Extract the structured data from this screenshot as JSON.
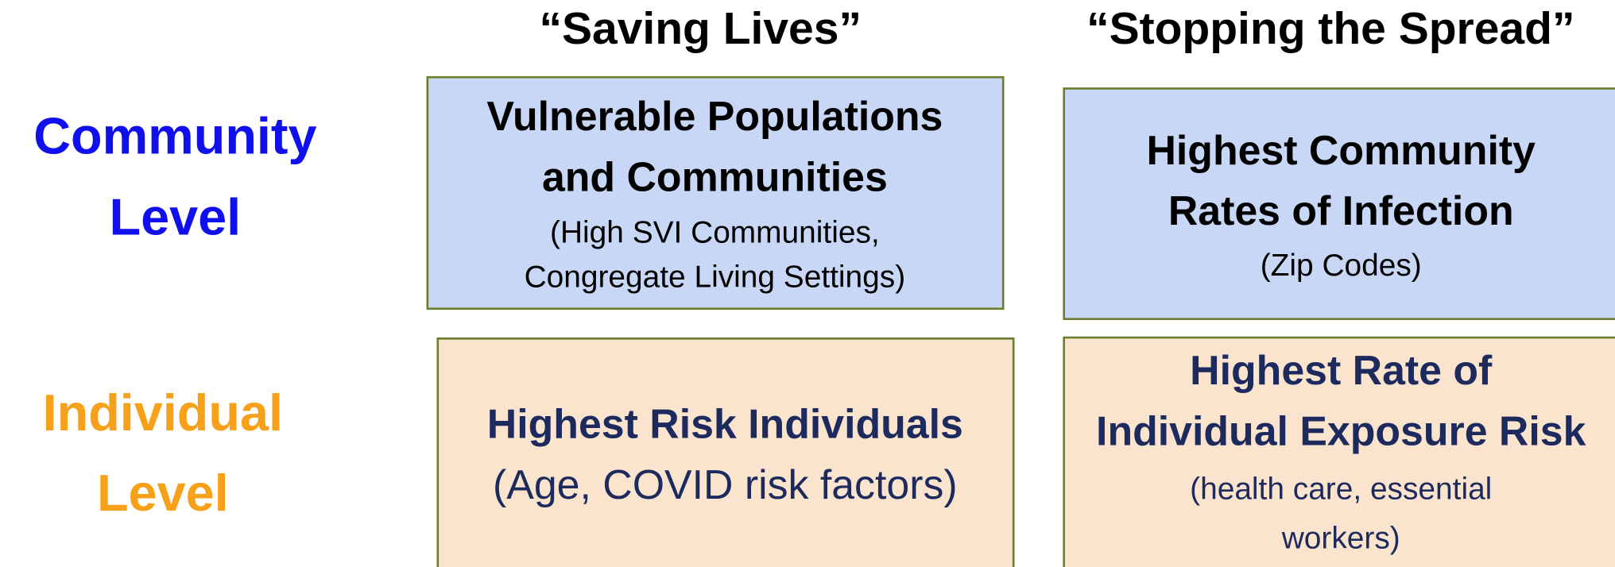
{
  "columns": [
    "“Saving Lives”",
    "“Stopping the Spread”"
  ],
  "rows": [
    {
      "label": [
        "Community",
        "Level"
      ]
    },
    {
      "label": [
        "Individual",
        "Level"
      ]
    }
  ],
  "cells": [
    {
      "title": [
        "Vulnerable Populations",
        "and Communities"
      ],
      "detail": [
        "(High SVI Communities,",
        "Congregate Living Settings)"
      ]
    },
    {
      "title": [
        "Highest Community",
        "Rates of Infection"
      ],
      "detail": [
        "(Zip Codes)"
      ]
    },
    {
      "title": [
        "Highest Risk Individuals"
      ],
      "detail": [
        "(Age, COVID risk factors)"
      ]
    },
    {
      "title": [
        "Highest Rate of",
        "Individual Exposure Risk"
      ],
      "detail": [
        "(health care, essential",
        "workers)"
      ]
    }
  ]
}
